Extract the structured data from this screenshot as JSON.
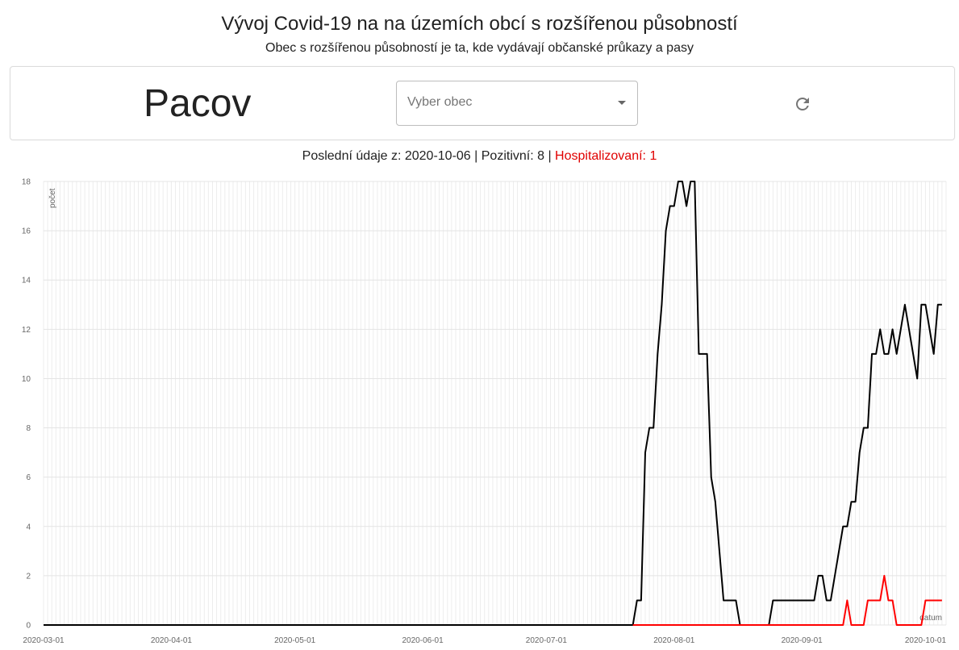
{
  "header": {
    "title": "Vývoj Covid-19 na na územích obcí s rozšířenou působností",
    "subtitle": "Obec s rozšířenou působností je ta, kde vydávají občanské průkazy a pasy"
  },
  "controls": {
    "city_name": "Pacov",
    "select_placeholder": "Vyber obec",
    "reload_icon": "refresh-icon"
  },
  "status": {
    "prefix": "Poslední údaje z: 2020-10-06 | Pozitivní: 8 | ",
    "hospitalized": "Hospitalizovaní: 1"
  },
  "colors": {
    "positive": "#000000",
    "hospitalized": "#ff0000",
    "grid": "#e6e6e6"
  },
  "chart_data": {
    "type": "line",
    "xlabel": "datum",
    "ylabel": "počet",
    "ylim": [
      0,
      18
    ],
    "yticks": [
      0,
      2,
      4,
      6,
      8,
      10,
      12,
      14,
      16,
      18
    ],
    "xlim": [
      "2020-03-01",
      "2020-10-06"
    ],
    "xticks": [
      "2020-03-01",
      "2020-04-01",
      "2020-05-01",
      "2020-06-01",
      "2020-07-01",
      "2020-08-01",
      "2020-09-01",
      "2020-10-01"
    ],
    "grid": true,
    "series": [
      {
        "name": "Pozitivní",
        "color": "#000000",
        "points": [
          [
            "2020-03-01",
            0
          ],
          [
            "2020-07-22",
            0
          ],
          [
            "2020-07-23",
            1
          ],
          [
            "2020-07-24",
            1
          ],
          [
            "2020-07-25",
            7
          ],
          [
            "2020-07-26",
            8
          ],
          [
            "2020-07-27",
            8
          ],
          [
            "2020-07-28",
            11
          ],
          [
            "2020-07-29",
            13
          ],
          [
            "2020-07-30",
            16
          ],
          [
            "2020-07-31",
            17
          ],
          [
            "2020-08-01",
            17
          ],
          [
            "2020-08-02",
            18
          ],
          [
            "2020-08-03",
            18
          ],
          [
            "2020-08-04",
            17
          ],
          [
            "2020-08-05",
            18
          ],
          [
            "2020-08-06",
            18
          ],
          [
            "2020-08-07",
            11
          ],
          [
            "2020-08-08",
            11
          ],
          [
            "2020-08-09",
            11
          ],
          [
            "2020-08-10",
            6
          ],
          [
            "2020-08-11",
            5
          ],
          [
            "2020-08-12",
            3
          ],
          [
            "2020-08-13",
            1
          ],
          [
            "2020-08-14",
            1
          ],
          [
            "2020-08-15",
            1
          ],
          [
            "2020-08-16",
            1
          ],
          [
            "2020-08-17",
            0
          ],
          [
            "2020-08-24",
            0
          ],
          [
            "2020-08-25",
            1
          ],
          [
            "2020-08-31",
            1
          ],
          [
            "2020-09-04",
            1
          ],
          [
            "2020-09-05",
            2
          ],
          [
            "2020-09-06",
            2
          ],
          [
            "2020-09-07",
            1
          ],
          [
            "2020-09-08",
            1
          ],
          [
            "2020-09-09",
            2
          ],
          [
            "2020-09-10",
            3
          ],
          [
            "2020-09-11",
            4
          ],
          [
            "2020-09-12",
            4
          ],
          [
            "2020-09-13",
            5
          ],
          [
            "2020-09-14",
            5
          ],
          [
            "2020-09-15",
            7
          ],
          [
            "2020-09-16",
            8
          ],
          [
            "2020-09-17",
            8
          ],
          [
            "2020-09-18",
            11
          ],
          [
            "2020-09-19",
            11
          ],
          [
            "2020-09-20",
            12
          ],
          [
            "2020-09-21",
            11
          ],
          [
            "2020-09-22",
            11
          ],
          [
            "2020-09-23",
            12
          ],
          [
            "2020-09-24",
            11
          ],
          [
            "2020-09-25",
            12
          ],
          [
            "2020-09-26",
            13
          ],
          [
            "2020-09-27",
            12
          ],
          [
            "2020-09-28",
            11
          ],
          [
            "2020-09-29",
            10
          ],
          [
            "2020-09-30",
            13
          ],
          [
            "2020-10-01",
            13
          ],
          [
            "2020-10-02",
            12
          ],
          [
            "2020-10-03",
            11
          ],
          [
            "2020-10-04",
            13
          ],
          [
            "2020-10-05",
            13
          ]
        ]
      },
      {
        "name": "Hospitalizovaní",
        "color": "#ff0000",
        "points": [
          [
            "2020-07-22",
            0
          ],
          [
            "2020-09-11",
            0
          ],
          [
            "2020-09-12",
            1
          ],
          [
            "2020-09-13",
            0
          ],
          [
            "2020-09-16",
            0
          ],
          [
            "2020-09-17",
            1
          ],
          [
            "2020-09-20",
            1
          ],
          [
            "2020-09-21",
            2
          ],
          [
            "2020-09-22",
            1
          ],
          [
            "2020-09-23",
            1
          ],
          [
            "2020-09-24",
            0
          ],
          [
            "2020-09-30",
            0
          ],
          [
            "2020-10-01",
            1
          ],
          [
            "2020-10-05",
            1
          ]
        ]
      }
    ]
  }
}
